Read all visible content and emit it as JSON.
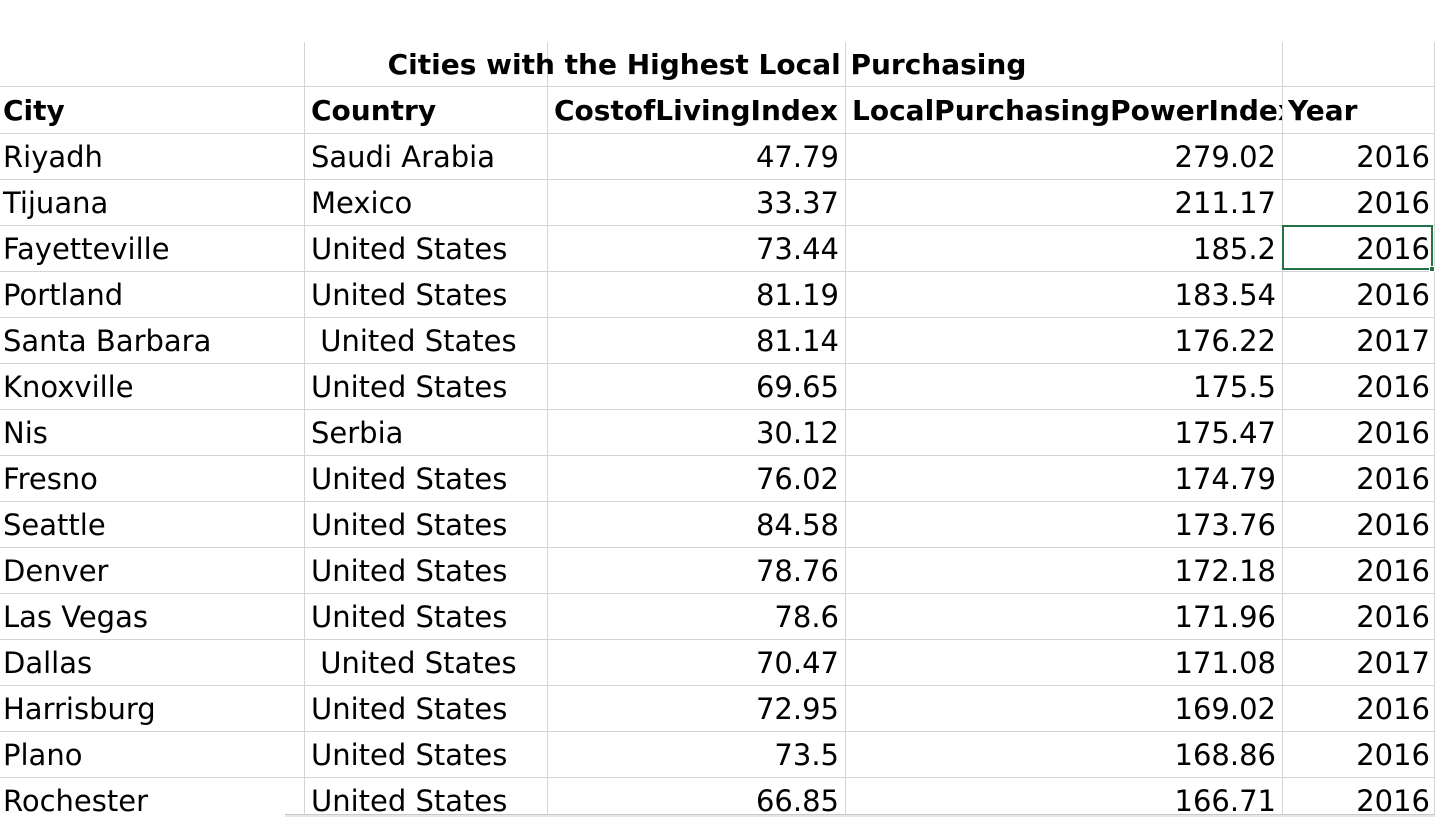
{
  "sheet": {
    "title": "Cities with the Highest Local Purchasing",
    "columns": {
      "city": "City",
      "country": "Country",
      "cost_of_living": "CostofLivingIndex",
      "local_purchasing_power": "LocalPurchasingPowerIndex",
      "year": "Year"
    },
    "rows": [
      {
        "city": "Riyadh",
        "country": "Saudi Arabia",
        "cost_of_living": "47.79",
        "local_purchasing_power": "279.02",
        "year": "2016"
      },
      {
        "city": "Tijuana",
        "country": "Mexico",
        "cost_of_living": "33.37",
        "local_purchasing_power": "211.17",
        "year": "2016"
      },
      {
        "city": "Fayetteville",
        "country": "United States",
        "cost_of_living": "73.44",
        "local_purchasing_power": "185.2",
        "year": "2016"
      },
      {
        "city": "Portland",
        "country": "United States",
        "cost_of_living": "81.19",
        "local_purchasing_power": "183.54",
        "year": "2016"
      },
      {
        "city": "Santa Barbara",
        "country": " United States",
        "cost_of_living": "81.14",
        "local_purchasing_power": "176.22",
        "year": "2017"
      },
      {
        "city": "Knoxville",
        "country": "United States",
        "cost_of_living": "69.65",
        "local_purchasing_power": "175.5",
        "year": "2016"
      },
      {
        "city": "Nis",
        "country": "Serbia",
        "cost_of_living": "30.12",
        "local_purchasing_power": "175.47",
        "year": "2016"
      },
      {
        "city": "Fresno",
        "country": "United States",
        "cost_of_living": "76.02",
        "local_purchasing_power": "174.79",
        "year": "2016"
      },
      {
        "city": "Seattle",
        "country": "United States",
        "cost_of_living": "84.58",
        "local_purchasing_power": "173.76",
        "year": "2016"
      },
      {
        "city": "Denver",
        "country": "United States",
        "cost_of_living": "78.76",
        "local_purchasing_power": "172.18",
        "year": "2016"
      },
      {
        "city": "Las Vegas",
        "country": "United States",
        "cost_of_living": "78.6",
        "local_purchasing_power": "171.96",
        "year": "2016"
      },
      {
        "city": "Dallas",
        "country": " United States",
        "cost_of_living": "70.47",
        "local_purchasing_power": "171.08",
        "year": "2017"
      },
      {
        "city": "Harrisburg",
        "country": "United States",
        "cost_of_living": "72.95",
        "local_purchasing_power": "169.02",
        "year": "2016"
      },
      {
        "city": "Plano",
        "country": "United States",
        "cost_of_living": "73.5",
        "local_purchasing_power": "168.86",
        "year": "2016"
      },
      {
        "city": "Rochester",
        "country": "United States",
        "cost_of_living": "66.85",
        "local_purchasing_power": "166.71",
        "year": "2016"
      }
    ],
    "selection_color": "#217346",
    "gridline_color": "#d4d4d4"
  }
}
